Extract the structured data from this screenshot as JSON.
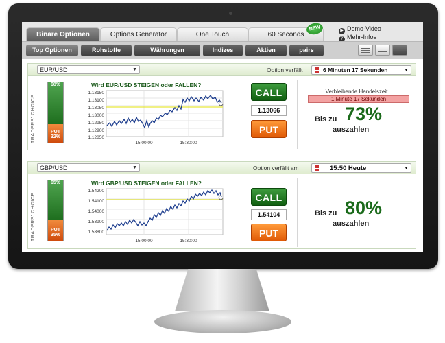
{
  "tabs": [
    {
      "label": "Binäre Optionen",
      "active": true
    },
    {
      "label": "Options Generator",
      "active": false
    },
    {
      "label": "One Touch",
      "active": false
    },
    {
      "label": "60 Seconds",
      "active": false,
      "badge": "NEW"
    }
  ],
  "side_links": {
    "demo": "Demo-Video",
    "info": "Mehr-Infos"
  },
  "subtabs": [
    "Top Optionen",
    "Rohstoffe",
    "Währungen",
    "Indizes",
    "Aktien",
    "pairs"
  ],
  "panels": [
    {
      "asset": "EUR/USD",
      "expiry_label": "Option verfällt",
      "expiry_value": "6 Minuten 17 Sekunden",
      "traders_choice": "TRADERS' CHOICE",
      "call_pct": "68%",
      "put_pct": "32%",
      "call_pct_value": 68,
      "put_label": "PUT",
      "chart_title": "Wird EUR/USD STEIGEN oder FALLEN?",
      "y_ticks": [
        "1.13150",
        "1.13100",
        "1.13050",
        "1.13000",
        "1.12950",
        "1.12900",
        "1.12850"
      ],
      "x_ticks": [
        "15:00:00",
        "15:30:00"
      ],
      "call_label": "CALL",
      "put_button": "PUT",
      "price": "1.13066",
      "remaining_label": "Verbleibende Handelszeit",
      "remaining_value": "1 Minute 17 Sekunden",
      "payout_pre": "Bis zu",
      "payout_pct": "73%",
      "payout_post": "auszahlen"
    },
    {
      "asset": "GBP/USD",
      "expiry_label": "Option verfällt am",
      "expiry_value": "15:50 Heute",
      "traders_choice": "TRADERS' CHOICE",
      "call_pct": "65%",
      "put_pct": "35%",
      "call_pct_value": 65,
      "put_label": "PUT",
      "chart_title": "Wird GBP/USD STEIGEN oder FALLEN?",
      "y_ticks": [
        "1.54200",
        "1.54100",
        "1.54000",
        "1.53900",
        "1.53800"
      ],
      "x_ticks": [
        "15:00:00",
        "15:30:00"
      ],
      "call_label": "CALL",
      "put_button": "PUT",
      "price": "1.54104",
      "payout_pre": "Bis zu",
      "payout_pct": "80%",
      "payout_post": "auszahlen"
    }
  ],
  "colors": {
    "accent_green": "#1a6a1a",
    "call": "#2a8a2a",
    "put": "#e86a14",
    "chart_line": "#1f3f8f",
    "strike_line": "#e6e63a"
  }
}
